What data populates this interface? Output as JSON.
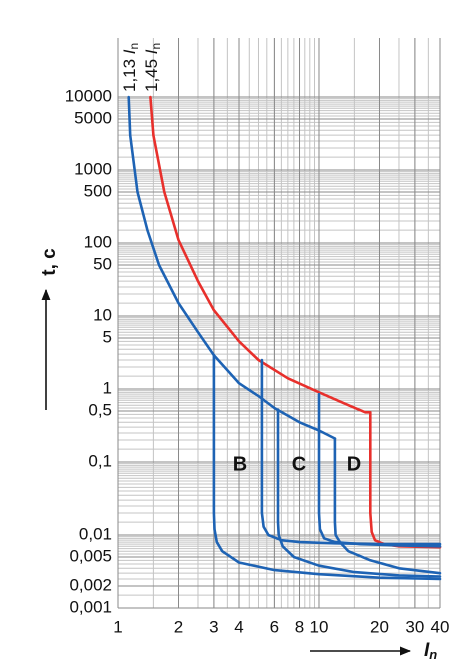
{
  "chart_data": {
    "type": "line",
    "xlog": true,
    "ylog": true,
    "grid": true,
    "minor_grid": true,
    "xlim": [
      1,
      40
    ],
    "ylim": [
      0.001,
      10000
    ],
    "xticks": [
      1,
      2,
      3,
      4,
      6,
      8,
      10,
      20,
      30,
      40
    ],
    "yticks": [
      10000,
      5000,
      1000,
      500,
      100,
      50,
      10,
      5,
      1,
      {
        "value": 0.5,
        "label": "0,5"
      },
      {
        "value": 0.1,
        "label": "0,1"
      },
      {
        "value": 0.01,
        "label": "0,01"
      },
      {
        "value": 0.005,
        "label": "0,005"
      },
      {
        "value": 0.002,
        "label": "0,002"
      },
      {
        "value": 0.001,
        "label": "0,001"
      }
    ],
    "ylabel": "t, c",
    "xlabel": {
      "symbol": "I",
      "subscript": "n"
    },
    "annotations": [
      {
        "text": "1,13 ",
        "symbol": "I",
        "subscript": "n"
      },
      {
        "text": "1,45 ",
        "symbol": "I",
        "subscript": "n"
      }
    ],
    "curve_labels": [
      "B",
      "C",
      "D"
    ],
    "series": [
      {
        "color": "#e8302c",
        "x": [
          1.45,
          1.5,
          1.7,
          2,
          2.5,
          3,
          4,
          5,
          7,
          10,
          14,
          17,
          18,
          18,
          18.3,
          19,
          21,
          25,
          40
        ],
        "values": [
          10000,
          3000,
          500,
          110,
          30,
          12,
          4.5,
          2.5,
          1.4,
          0.9,
          0.6,
          0.48,
          0.48,
          0.02,
          0.011,
          0.0085,
          0.0075,
          0.007,
          0.0068
        ]
      },
      {
        "color": "#1e63b4",
        "x": [
          1.13,
          1.15,
          1.25,
          1.4,
          1.6,
          2,
          2.5,
          3,
          4,
          5,
          6,
          8,
          10,
          12
        ],
        "values": [
          10000,
          3000,
          500,
          150,
          50,
          15,
          6,
          2.9,
          1.2,
          0.8,
          0.55,
          0.35,
          0.27,
          0.21
        ]
      },
      {
        "color": "#1e63b4",
        "x": [
          3,
          3,
          3.02,
          3.1,
          3.3,
          4,
          6,
          10,
          20,
          40
        ],
        "values": [
          2.9,
          0.02,
          0.012,
          0.008,
          0.006,
          0.0042,
          0.0033,
          0.0029,
          0.0026,
          0.0025
        ]
      },
      {
        "color": "#1e63b4",
        "x": [
          5.2,
          5.2,
          5.3,
          5.6,
          6.5,
          8,
          12,
          20,
          40
        ],
        "values": [
          2.5,
          0.02,
          0.013,
          0.01,
          0.0085,
          0.008,
          0.0077,
          0.0075,
          0.0075
        ]
      },
      {
        "color": "#1e63b4",
        "x": [
          6.25,
          6.25,
          6.3,
          6.6,
          7.5,
          10,
          15,
          25,
          40
        ],
        "values": [
          0.52,
          0.015,
          0.01,
          0.007,
          0.005,
          0.0038,
          0.0031,
          0.0028,
          0.0027
        ]
      },
      {
        "color": "#1e63b4",
        "x": [
          10,
          10,
          10.1,
          10.6,
          12,
          16,
          25,
          40
        ],
        "values": [
          0.85,
          0.02,
          0.012,
          0.009,
          0.008,
          0.0075,
          0.0072,
          0.007
        ]
      },
      {
        "color": "#1e63b4",
        "x": [
          12,
          12,
          12.1,
          12.7,
          14,
          18,
          25,
          40
        ],
        "values": [
          0.21,
          0.015,
          0.01,
          0.008,
          0.006,
          0.0045,
          0.0035,
          0.003
        ]
      }
    ]
  }
}
